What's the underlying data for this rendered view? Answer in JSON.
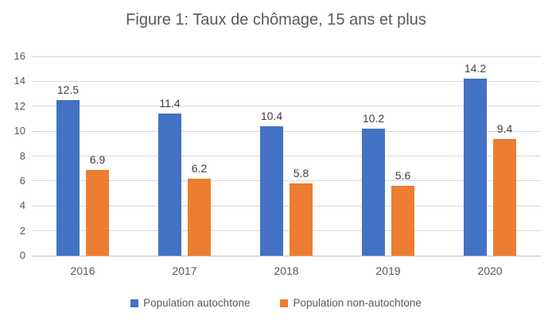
{
  "title": "Figure 1: Taux de chômage, 15 ans et plus",
  "chart_data": {
    "type": "bar",
    "title": "Figure 1: Taux de chômage, 15 ans et plus",
    "categories": [
      "2016",
      "2017",
      "2018",
      "2019",
      "2020"
    ],
    "series": [
      {
        "name": "Population autochtone",
        "color": "#4472C4",
        "values": [
          12.5,
          11.4,
          10.4,
          10.2,
          14.2
        ]
      },
      {
        "name": "Population non-autochtone",
        "color": "#ED7D31",
        "values": [
          6.9,
          6.2,
          5.8,
          5.6,
          9.4
        ]
      }
    ],
    "ylim": [
      0,
      16
    ],
    "ytick_step": 2,
    "grid": true,
    "legend_position": "bottom",
    "xlabel": "",
    "ylabel": "",
    "colors": {
      "grid": "#D9D9D9",
      "axis": "#BFBFBF",
      "tick_text": "#595959",
      "data_label": "#404040"
    }
  }
}
